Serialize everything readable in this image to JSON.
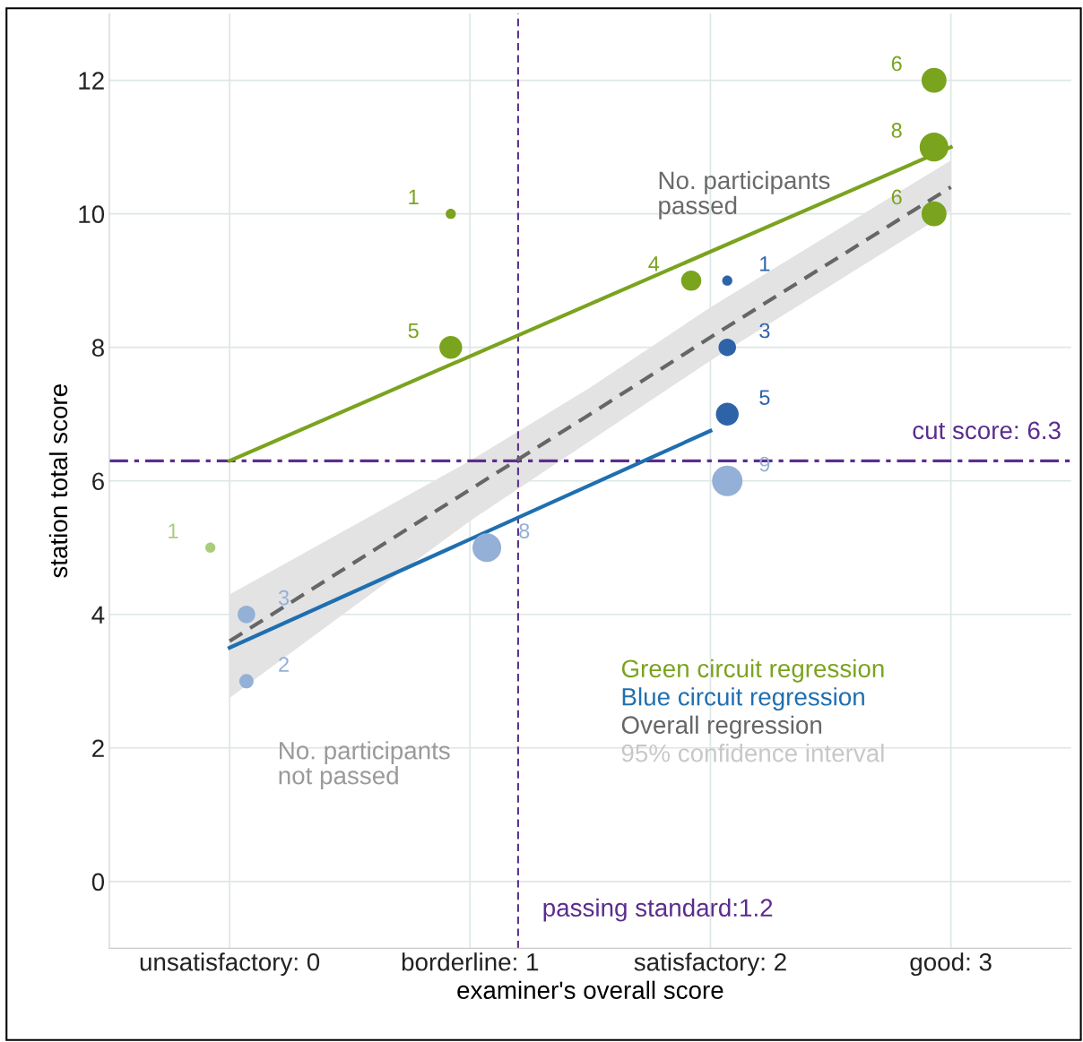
{
  "chart_data": {
    "type": "bubble",
    "xlabel": "examiner's overall score",
    "ylabel": "station total score",
    "xlim": [
      -0.5,
      3.5
    ],
    "ylim": [
      -1,
      13
    ],
    "xticks": [
      {
        "value": 0,
        "label": "unsatisfactory: 0"
      },
      {
        "value": 1,
        "label": "borderline: 1"
      },
      {
        "value": 2,
        "label": "satisfactory: 2"
      },
      {
        "value": 3,
        "label": "good: 3"
      }
    ],
    "yticks": [
      0,
      2,
      4,
      6,
      8,
      10,
      12
    ],
    "grid": true,
    "legend": "bottom right",
    "series": [
      {
        "x": [
          -0.08,
          0.92,
          0.92,
          1.92,
          2.93,
          2.93,
          2.93
        ],
        "values": [
          5,
          10,
          8,
          9,
          12,
          11,
          10
        ],
        "sizes": [
          0.11,
          0.11,
          0.56,
          0.44,
          0.67,
          0.89,
          0.67
        ],
        "colors": [
          "#a9cd7a",
          "#7aa31e",
          "#7aa31e",
          "#7aa31e",
          "#7aa31e",
          "#7aa31e",
          "#7aa31e"
        ]
      },
      {
        "x": [
          0.07,
          0.07,
          1.07,
          2.07,
          2.07,
          2.07,
          2.07
        ],
        "values": [
          4,
          3,
          5,
          6,
          9,
          8,
          7
        ],
        "sizes": [
          0.33,
          0.22,
          0.89,
          1,
          0.11,
          0.33,
          0.56
        ],
        "colors": [
          "#94b0d6",
          "#94b0d6",
          "#94b0d6",
          "#94b0d6",
          "#2e63a8",
          "#2e63a8",
          "#2e63a8"
        ]
      },
      {
        "type": "line",
        "name": "Green circuit regression",
        "color": "#7aa31e",
        "x": [
          0,
          3
        ],
        "values": [
          6.3,
          11.0
        ],
        "line_style": "solid"
      },
      {
        "type": "line",
        "name": "Blue circuit regression",
        "color": "#1f6fb0",
        "x": [
          0,
          2
        ],
        "values": [
          3.5,
          6.75
        ],
        "line_style": "solid"
      },
      {
        "type": "line",
        "name": "Overall regression",
        "color": "#666666",
        "x": [
          0,
          1,
          1.5,
          2,
          3
        ],
        "values": [
          3.6,
          5.87,
          7.0,
          8.15,
          10.4
        ],
        "lower": [
          2.75,
          5.4,
          6.6,
          7.8,
          10.05
        ],
        "upper": [
          4.3,
          6.3,
          7.4,
          8.6,
          10.8
        ],
        "line_style": "dashed"
      }
    ],
    "ref_lines": [
      {
        "axis": "y",
        "value": 6.3,
        "label": "cut score: 6.3",
        "color": "#5b2d8e",
        "line_style": "dashdot"
      },
      {
        "axis": "x",
        "value": 1.2,
        "label": "passing standard:1.2",
        "color": "#5b2d8e",
        "line_style": "dashed"
      }
    ],
    "annotations": [
      "No. participants\npassed",
      "No. participants\nnot passed",
      "95% confidence interval",
      {
        "text": "1",
        "x": -0.08,
        "y": 5
      },
      {
        "text": "1",
        "x": 0.92,
        "y": 10
      },
      {
        "text": "5",
        "x": 0.92,
        "y": 8
      },
      {
        "text": "4",
        "x": 1.92,
        "y": 9
      },
      {
        "text": "6",
        "x": 2.93,
        "y": 12
      },
      {
        "text": "8",
        "x": 2.93,
        "y": 11
      },
      {
        "text": "6",
        "x": 2.93,
        "y": 10
      },
      {
        "text": "3",
        "x": 0.07,
        "y": 4
      },
      {
        "text": "2",
        "x": 0.07,
        "y": 3
      },
      {
        "text": "8",
        "x": 1.07,
        "y": 5
      },
      {
        "text": "9",
        "x": 2.07,
        "y": 6
      },
      {
        "text": "1",
        "x": 2.07,
        "y": 9
      },
      {
        "text": "3",
        "x": 2.07,
        "y": 8
      },
      {
        "text": "5",
        "x": 2.07,
        "y": 7
      }
    ]
  }
}
